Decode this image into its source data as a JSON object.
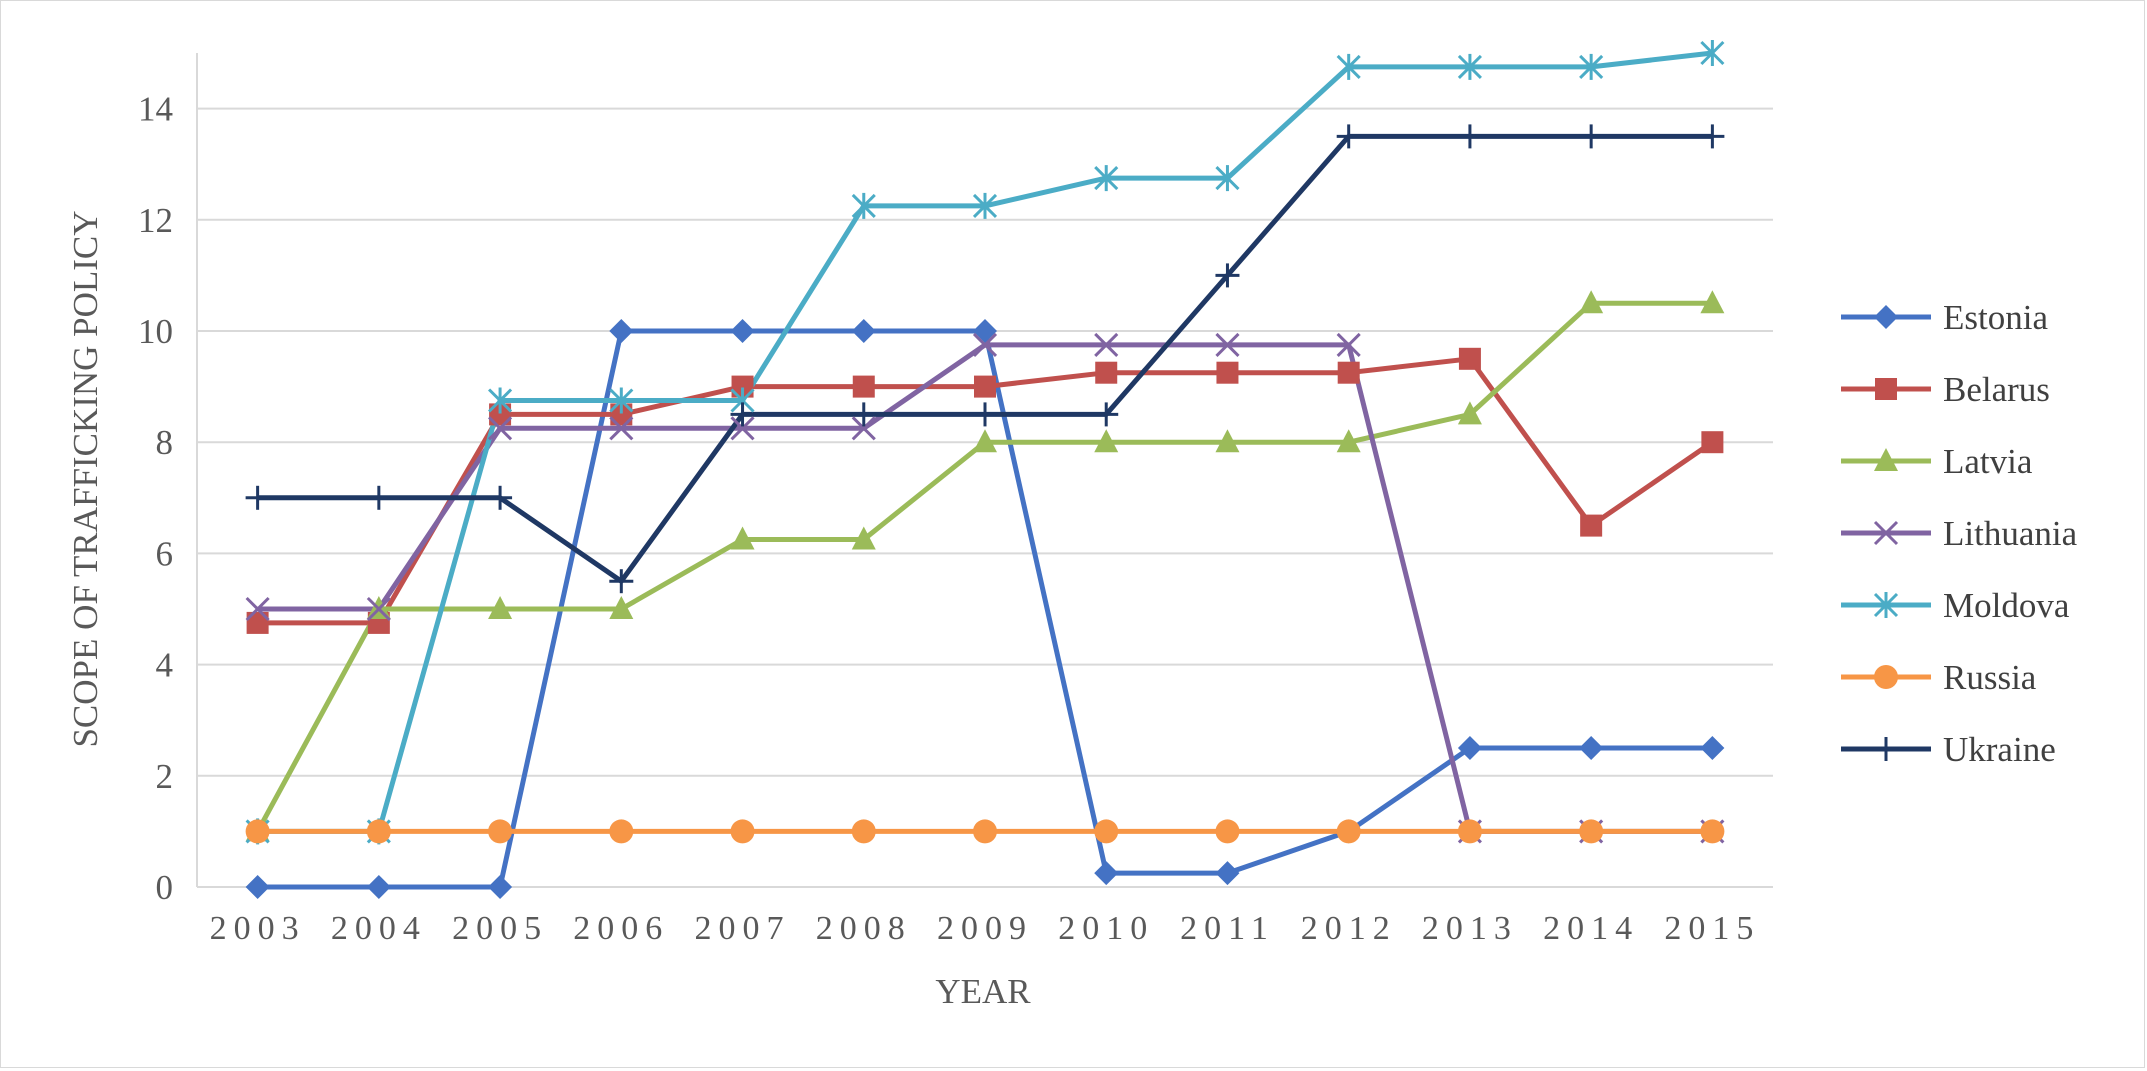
{
  "chart_data": {
    "type": "line",
    "title": "",
    "xlabel": "YEAR",
    "ylabel": "SCOPE OF TRAFFICKING POLICY",
    "x": [
      "2003",
      "2004",
      "2005",
      "2006",
      "2007",
      "2008",
      "2009",
      "2010",
      "2011",
      "2012",
      "2013",
      "2014",
      "2015"
    ],
    "ylim": [
      0,
      15
    ],
    "yticks": [
      0,
      2,
      4,
      6,
      8,
      10,
      12,
      14
    ],
    "grid": "horizontal",
    "legend_position": "right",
    "series": [
      {
        "name": "Estonia",
        "color": "#4472C4",
        "marker": "diamond",
        "values": [
          0,
          0,
          0,
          10,
          10,
          10,
          10,
          0.25,
          0.25,
          1,
          2.5,
          2.5,
          2.5
        ]
      },
      {
        "name": "Belarus",
        "color": "#C0504D",
        "marker": "square",
        "values": [
          4.75,
          4.75,
          8.5,
          8.5,
          9,
          9,
          9,
          9.25,
          9.25,
          9.25,
          9.5,
          6.5,
          8
        ]
      },
      {
        "name": "Latvia",
        "color": "#9BBB59",
        "marker": "triangle",
        "values": [
          1,
          5,
          5,
          5,
          6.25,
          6.25,
          8,
          8,
          8,
          8,
          8.5,
          10.5,
          10.5
        ]
      },
      {
        "name": "Lithuania",
        "color": "#8064A2",
        "marker": "x",
        "values": [
          5,
          5,
          8.25,
          8.25,
          8.25,
          8.25,
          9.75,
          9.75,
          9.75,
          9.75,
          1,
          1,
          1
        ]
      },
      {
        "name": "Moldova",
        "color": "#4BACC6",
        "marker": "star",
        "values": [
          1,
          1,
          8.75,
          8.75,
          8.75,
          12.25,
          12.25,
          12.75,
          12.75,
          14.75,
          14.75,
          14.75,
          15
        ]
      },
      {
        "name": "Russia",
        "color": "#F79646",
        "marker": "circle",
        "values": [
          1,
          1,
          1,
          1,
          1,
          1,
          1,
          1,
          1,
          1,
          1,
          1,
          1
        ]
      },
      {
        "name": "Ukraine",
        "color": "#1F3864",
        "marker": "plus",
        "values": [
          7,
          7,
          7,
          5.5,
          8.5,
          8.5,
          8.5,
          8.5,
          11,
          13.5,
          13.5,
          13.5,
          13.5
        ]
      }
    ]
  }
}
